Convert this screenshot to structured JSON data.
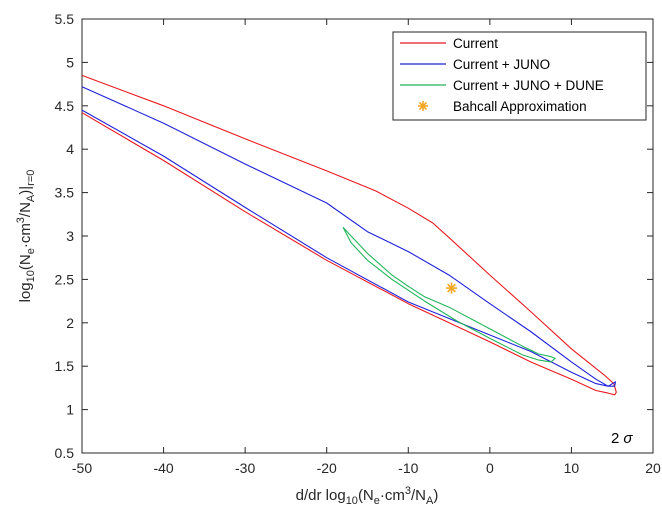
{
  "chart_data": {
    "type": "line",
    "xlabel": {
      "base": "d/dr log",
      "sub1": "10",
      "mid": "(N",
      "sub2": "e",
      "rest": "·cm",
      "sup": "3",
      "end": "/N",
      "sub3": "A",
      "close": ")"
    },
    "ylabel": {
      "base": "log",
      "sub1": "10",
      "mid": "(N",
      "sub2": "e",
      "rest": "·cm",
      "sup": "3",
      "end": "/N",
      "sub3": "A",
      "close": ")|",
      "sub4": "r=0"
    },
    "xlim": [
      -50,
      20
    ],
    "ylim": [
      0.5,
      5.5
    ],
    "xticks": [
      -50,
      -40,
      -30,
      -20,
      -10,
      0,
      10,
      20
    ],
    "yticks": [
      0.5,
      1,
      1.5,
      2,
      2.5,
      3,
      3.5,
      4,
      4.5,
      5,
      5.5
    ],
    "xtick_labels": [
      "-50",
      "-40",
      "-30",
      "-20",
      "-10",
      "0",
      "10",
      "20"
    ],
    "ytick_labels": [
      "0.5",
      "1",
      "1.5",
      "2",
      "2.5",
      "3",
      "3.5",
      "4",
      "4.5",
      "5",
      "5.5"
    ],
    "grid": false,
    "legend_position": "top-right",
    "annotation": {
      "text": "2",
      "symbol": "σ"
    },
    "series": [
      {
        "name": "Current",
        "color": "#e8191e",
        "kind": "line",
        "x": [
          -50,
          -40,
          -30,
          -20,
          -14,
          -10,
          -7,
          -5,
          0,
          5,
          10,
          14,
          15.2,
          15.5,
          15.3,
          14.5,
          13,
          10,
          5,
          0,
          -5,
          -10,
          -20,
          -30,
          -40,
          -50
        ],
        "y": [
          4.85,
          4.5,
          4.12,
          3.75,
          3.52,
          3.32,
          3.15,
          2.98,
          2.55,
          2.13,
          1.7,
          1.4,
          1.3,
          1.2,
          1.17,
          1.19,
          1.22,
          1.35,
          1.55,
          1.78,
          2.0,
          2.22,
          2.72,
          3.28,
          3.87,
          4.42
        ]
      },
      {
        "name": "Current + JUNO",
        "color": "#1f22d8",
        "kind": "line",
        "x": [
          -50,
          -40,
          -30,
          -20,
          -15,
          -10,
          -5,
          0,
          5,
          10,
          13,
          14.5,
          15.3,
          15.4,
          14.5,
          13,
          10,
          5,
          0,
          -5,
          -10,
          -20,
          -30,
          -40,
          -50
        ],
        "y": [
          4.72,
          4.3,
          3.83,
          3.38,
          3.05,
          2.82,
          2.55,
          2.22,
          1.9,
          1.55,
          1.35,
          1.27,
          1.27,
          1.32,
          1.27,
          1.3,
          1.43,
          1.67,
          1.86,
          2.05,
          2.24,
          2.75,
          3.33,
          3.92,
          4.45
        ]
      },
      {
        "name": "Current + JUNO + DUNE",
        "color": "#22b559",
        "kind": "line",
        "x": [
          -18,
          -17.5,
          -15,
          -12,
          -10,
          -8,
          -5,
          0,
          4,
          6,
          7.5,
          8,
          7.5,
          6,
          4,
          0,
          -4,
          -8,
          -12,
          -15,
          -17,
          -18
        ],
        "y": [
          3.1,
          3.05,
          2.8,
          2.55,
          2.42,
          2.3,
          2.18,
          1.93,
          1.73,
          1.64,
          1.61,
          1.59,
          1.55,
          1.57,
          1.63,
          1.82,
          2.02,
          2.25,
          2.5,
          2.72,
          2.92,
          3.1
        ]
      },
      {
        "name": "Bahcall Approximation",
        "color": "#f5a623",
        "kind": "marker",
        "x": [
          -4.7
        ],
        "y": [
          2.4
        ]
      }
    ]
  }
}
